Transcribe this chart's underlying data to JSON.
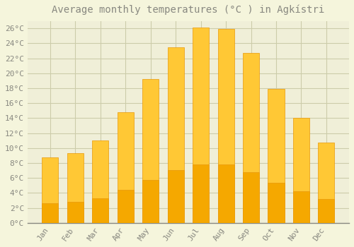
{
  "title": "Average monthly temperatures (°C ) in Agkístri",
  "months": [
    "Jan",
    "Feb",
    "Mar",
    "Apr",
    "May",
    "Jun",
    "Jul",
    "Aug",
    "Sep",
    "Oct",
    "Nov",
    "Dec"
  ],
  "values": [
    8.8,
    9.3,
    11.0,
    14.8,
    19.2,
    23.5,
    26.1,
    25.9,
    22.7,
    17.9,
    14.0,
    10.7
  ],
  "bar_color_top": "#FFC835",
  "bar_color_bottom": "#F5A800",
  "bar_edge_color": "#E8980A",
  "background_color": "#F5F5DC",
  "plot_bg_color": "#F0EFD8",
  "grid_color": "#CCCCAA",
  "text_color": "#888880",
  "ylim": [
    0,
    27
  ],
  "ytick_values": [
    0,
    2,
    4,
    6,
    8,
    10,
    12,
    14,
    16,
    18,
    20,
    22,
    24,
    26
  ],
  "title_fontsize": 10,
  "tick_fontsize": 8,
  "font_family": "monospace"
}
